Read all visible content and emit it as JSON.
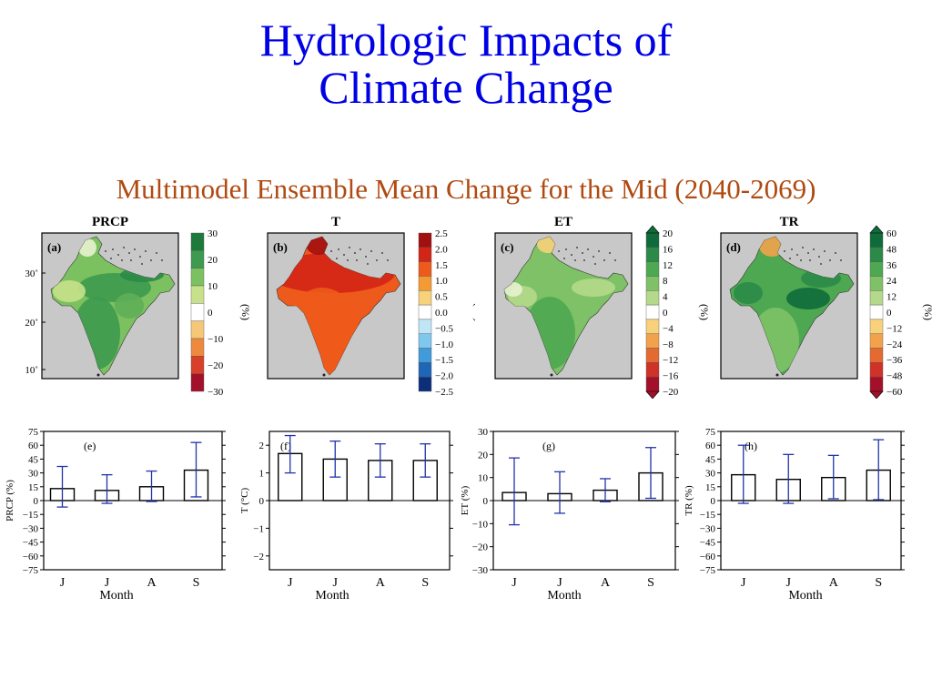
{
  "title_line1": "Hydrologic Impacts of",
  "title_line2": "Climate Change",
  "subtitle": "Multimodel Ensemble Mean Change for the Mid (2040-2069)",
  "map_panels": [
    {
      "title": "PRCP",
      "label": "(a)",
      "unit": "(%)",
      "lat_ticks": [
        "30˚",
        "20˚",
        "10˚"
      ],
      "colorbar_ticks": [
        "30",
        "20",
        "10",
        "0",
        "−10",
        "−20",
        "−30"
      ],
      "colorbar_colors": [
        "#1e7a3c",
        "#3e9a4e",
        "#7cc160",
        "#c6e18a",
        "#ffffff",
        "#f6c776",
        "#ee8a3e",
        "#d9402a",
        "#a3102a"
      ]
    },
    {
      "title": "T",
      "label": "(b)",
      "unit": "(°C)",
      "colorbar_ticks": [
        "2.5",
        "2.0",
        "1.5",
        "1.0",
        "0.5",
        "0.0",
        "−0.5",
        "−1.0",
        "−1.5",
        "−2.0",
        "−2.5"
      ],
      "colorbar_colors": [
        "#a10f0f",
        "#d32516",
        "#ee5a1b",
        "#f49a32",
        "#f8d27a",
        "#ffffff",
        "#bfe6f6",
        "#7ec8ee",
        "#3f9bd9",
        "#1d66b8",
        "#0d2f7a"
      ]
    },
    {
      "title": "ET",
      "label": "(c)",
      "unit": "(%)",
      "colorbar_ticks": [
        "20",
        "16",
        "12",
        "8",
        "4",
        "0",
        "−4",
        "−8",
        "−12",
        "−16",
        "−20"
      ],
      "colorbar_colors": [
        "#0f6b3a",
        "#2b8a47",
        "#4ea851",
        "#7ec166",
        "#b4d98a",
        "#ffffff",
        "#f8d27a",
        "#f2a24a",
        "#e56a32",
        "#cf3226",
        "#a3102a"
      ]
    },
    {
      "title": "TR",
      "label": "(d)",
      "unit": "(%)",
      "colorbar_ticks": [
        "60",
        "48",
        "36",
        "24",
        "12",
        "0",
        "−12",
        "−24",
        "−36",
        "−48",
        "−60"
      ],
      "colorbar_colors": [
        "#0f6b3a",
        "#2b8a47",
        "#4ea851",
        "#7ec166",
        "#b4d98a",
        "#ffffff",
        "#f8d27a",
        "#f2a24a",
        "#e56a32",
        "#cf3226",
        "#a3102a"
      ]
    }
  ],
  "chart_data": [
    {
      "type": "bar",
      "panel": "(e)",
      "ylabel": "PRCP (%)",
      "xlabel": "Month",
      "categories": [
        "J",
        "J",
        "A",
        "S"
      ],
      "values": [
        13,
        11,
        15,
        33
      ],
      "err_low": [
        -7,
        -3,
        -1,
        4
      ],
      "err_high": [
        37,
        28,
        32,
        63
      ],
      "ylim": [
        -75,
        75
      ],
      "yticks": [
        75,
        60,
        45,
        30,
        15,
        0,
        -15,
        -30,
        -45,
        -60,
        -75
      ]
    },
    {
      "type": "bar",
      "panel": "(f)",
      "ylabel": "T (°C)",
      "xlabel": "Month",
      "categories": [
        "J",
        "J",
        "A",
        "S"
      ],
      "values": [
        1.7,
        1.5,
        1.45,
        1.45
      ],
      "err_low": [
        1.0,
        0.85,
        0.85,
        0.85
      ],
      "err_high": [
        2.35,
        2.15,
        2.05,
        2.05
      ],
      "ylim": [
        -2.5,
        2.5
      ],
      "yticks": [
        2,
        1,
        0,
        -1,
        -2
      ]
    },
    {
      "type": "bar",
      "panel": "(g)",
      "ylabel": "ET (%)",
      "xlabel": "Month",
      "categories": [
        "J",
        "J",
        "A",
        "S"
      ],
      "values": [
        3.5,
        3,
        4.5,
        12
      ],
      "err_low": [
        -10.5,
        -5.5,
        -0.5,
        1
      ],
      "err_high": [
        18.5,
        12.5,
        9.5,
        23
      ],
      "ylim": [
        -30,
        30
      ],
      "yticks": [
        30,
        20,
        10,
        0,
        -10,
        -20,
        -30
      ]
    },
    {
      "type": "bar",
      "panel": "(h)",
      "ylabel": "TR (%)",
      "xlabel": "Month",
      "categories": [
        "J",
        "J",
        "A",
        "S"
      ],
      "values": [
        28,
        23,
        25,
        33
      ],
      "err_low": [
        -3,
        -3,
        2,
        1
      ],
      "err_high": [
        60,
        50,
        49,
        66
      ],
      "ylim": [
        -75,
        75
      ],
      "yticks": [
        75,
        60,
        45,
        30,
        15,
        0,
        -15,
        -30,
        -45,
        -60,
        -75
      ]
    }
  ]
}
